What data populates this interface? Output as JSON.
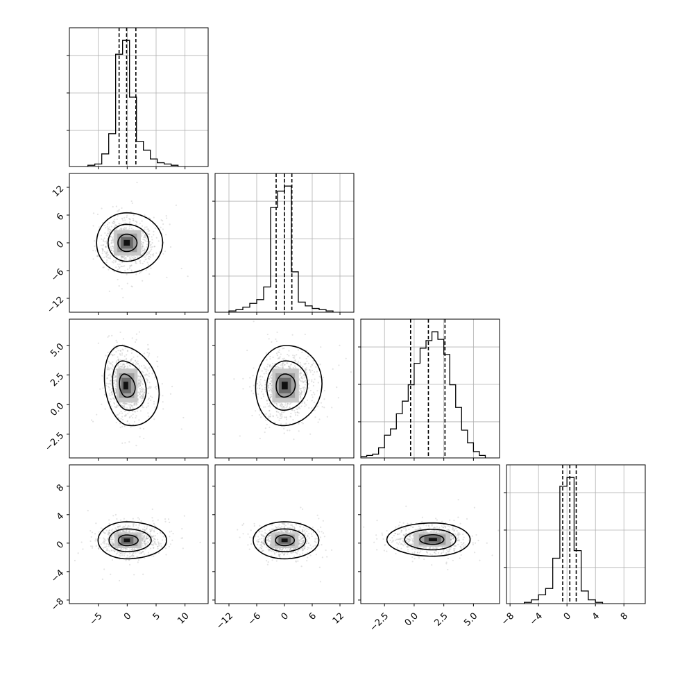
{
  "chart_data": {
    "type": "corner",
    "grid": true,
    "variables": [
      {
        "range": [
          -10,
          14
        ],
        "ticks": [
          -5,
          0,
          5,
          10
        ],
        "tick_labels": [
          "−5",
          "0",
          "5",
          "10"
        ],
        "quantiles": [
          -1.4,
          -0.1,
          1.5
        ],
        "hist_edges": [
          -6.8,
          -5.6,
          -4.4,
          -3.2,
          -2.0,
          -0.8,
          0.4,
          1.6,
          2.8,
          4.0,
          5.2,
          6.4,
          7.6,
          8.8
        ],
        "hist_counts": [
          0.01,
          0.02,
          0.1,
          0.26,
          0.89,
          1.0,
          0.55,
          0.2,
          0.13,
          0.06,
          0.03,
          0.02,
          0.01
        ]
      },
      {
        "range": [
          -15,
          15
        ],
        "ticks": [
          -12,
          -6,
          0,
          6,
          12
        ],
        "tick_labels": [
          "−12",
          "−6",
          "0",
          "6",
          "12"
        ],
        "quantiles": [
          -1.8,
          0.0,
          1.6
        ],
        "hist_edges": [
          -12.0,
          -10.5,
          -9.0,
          -7.5,
          -6.0,
          -4.5,
          -3.0,
          -1.5,
          0.0,
          1.5,
          3.0,
          4.5,
          6.0,
          7.5,
          9.0,
          10.5
        ],
        "hist_counts": [
          0.01,
          0.02,
          0.04,
          0.07,
          0.1,
          0.2,
          0.83,
          0.96,
          1.0,
          0.32,
          0.08,
          0.05,
          0.03,
          0.02,
          0.01
        ]
      },
      {
        "range": [
          -4.5,
          7.2
        ],
        "ticks": [
          -2.5,
          0.0,
          2.5,
          5.0
        ],
        "tick_labels": [
          "−2.5",
          "0.0",
          "2.5",
          "5.0"
        ],
        "quantiles": [
          -0.3,
          1.2,
          2.6
        ],
        "hist_edges": [
          -4.5,
          -4.0,
          -3.5,
          -3.0,
          -2.5,
          -2.0,
          -1.5,
          -1.0,
          -0.5,
          0.0,
          0.5,
          1.0,
          1.5,
          2.0,
          2.5,
          3.0,
          3.5,
          4.0,
          4.5,
          5.0,
          5.5,
          6.0
        ],
        "hist_counts": [
          0.01,
          0.02,
          0.03,
          0.08,
          0.18,
          0.23,
          0.35,
          0.45,
          0.58,
          0.75,
          0.87,
          0.93,
          1.0,
          0.94,
          0.82,
          0.58,
          0.4,
          0.22,
          0.12,
          0.05,
          0.02
        ]
      },
      {
        "range": [
          -8.5,
          11
        ],
        "ticks": [
          -8,
          -4,
          0,
          4,
          8
        ],
        "tick_labels": [
          "−8",
          "−4",
          "0",
          "4",
          "8"
        ],
        "quantiles": [
          -0.6,
          0.4,
          1.3
        ],
        "hist_edges": [
          -6.0,
          -5.0,
          -4.0,
          -3.0,
          -2.0,
          -1.0,
          0.0,
          1.0,
          2.0,
          3.0,
          4.0,
          5.0
        ],
        "hist_counts": [
          0.01,
          0.03,
          0.07,
          0.12,
          0.36,
          0.93,
          1.0,
          0.42,
          0.1,
          0.03,
          0.01
        ]
      }
    ],
    "pairs": [
      {
        "x": 0,
        "y": 1,
        "mean": [
          -0.1,
          0.0
        ],
        "sd": [
          2.0,
          2.5
        ],
        "corr": 0.0,
        "skew_x": 0.2,
        "skew_y": 0.0
      },
      {
        "x": 0,
        "y": 2,
        "mean": [
          -0.3,
          1.6
        ],
        "sd": [
          1.4,
          1.3
        ],
        "corr": -0.2,
        "skew_x": 0.6,
        "skew_y": 0.0
      },
      {
        "x": 0,
        "y": 3,
        "mean": [
          -0.1,
          0.4
        ],
        "sd": [
          1.9,
          1.0
        ],
        "corr": 0.0,
        "skew_x": 0.4,
        "skew_y": 0.0
      },
      {
        "x": 1,
        "y": 2,
        "mean": [
          0.0,
          1.6
        ],
        "sd": [
          2.4,
          1.3
        ],
        "corr": 0.05,
        "skew_x": 0.3,
        "skew_y": 0.0
      },
      {
        "x": 1,
        "y": 3,
        "mean": [
          0.0,
          0.4
        ],
        "sd": [
          2.6,
          1.0
        ],
        "corr": 0.0,
        "skew_x": 0.1,
        "skew_y": 0.0
      },
      {
        "x": 2,
        "y": 3,
        "mean": [
          1.6,
          0.5
        ],
        "sd": [
          1.5,
          0.9
        ],
        "corr": 0.0,
        "skew_x": -0.2,
        "skew_y": 0.0
      }
    ]
  }
}
